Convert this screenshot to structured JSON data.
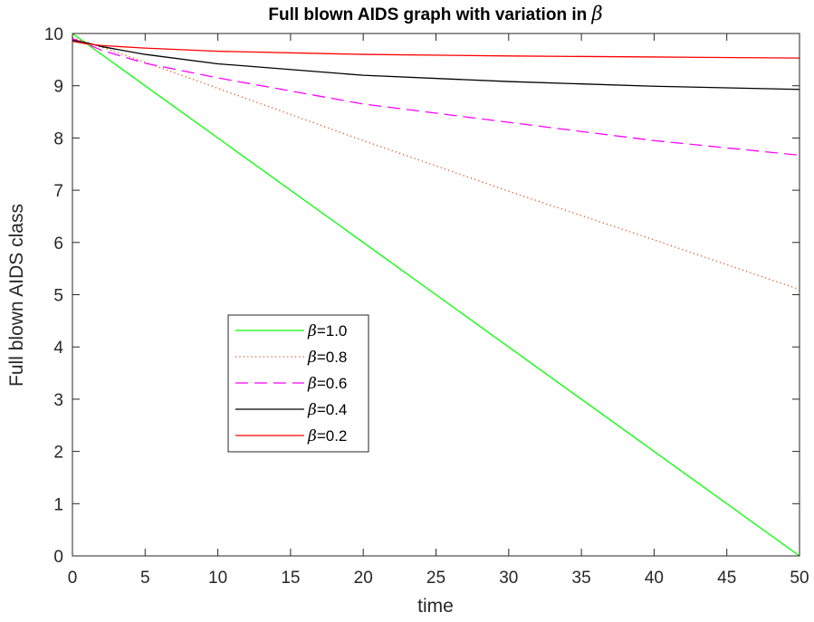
{
  "chart_data": {
    "type": "line",
    "title_text": "Full blown AIDS graph with variation in ",
    "title_symbol": "β",
    "xlabel": "time",
    "ylabel": "Full blown AIDS class",
    "xlim": [
      0,
      50
    ],
    "ylim": [
      0,
      10
    ],
    "xticks": [
      0,
      5,
      10,
      15,
      20,
      25,
      30,
      35,
      40,
      45,
      50
    ],
    "yticks": [
      0,
      1,
      2,
      3,
      4,
      5,
      6,
      7,
      8,
      9,
      10
    ],
    "grid": false,
    "legend_position": "lower-left-inside",
    "series": [
      {
        "name": "=1.0",
        "symbol": "β",
        "color": "#00ff00",
        "dash": "solid",
        "x": [
          0,
          50
        ],
        "y": [
          10.0,
          0.0
        ]
      },
      {
        "name": "=0.8",
        "symbol": "β",
        "color": "#d95319",
        "dash": "dotted",
        "x": [
          0,
          1,
          2,
          5,
          10,
          20,
          30,
          40,
          50
        ],
        "y": [
          9.92,
          9.83,
          9.74,
          9.45,
          8.95,
          7.95,
          6.98,
          6.05,
          5.1
        ]
      },
      {
        "name": "=0.6",
        "symbol": "β",
        "color": "#ff00ff",
        "dash": "dashed",
        "x": [
          0,
          1,
          2,
          5,
          10,
          20,
          30,
          40,
          50
        ],
        "y": [
          9.9,
          9.8,
          9.68,
          9.43,
          9.15,
          8.65,
          8.3,
          7.95,
          7.67
        ]
      },
      {
        "name": "=0.4",
        "symbol": "β",
        "color": "#000000",
        "dash": "solid",
        "x": [
          0,
          1,
          2,
          5,
          10,
          20,
          30,
          40,
          50
        ],
        "y": [
          9.87,
          9.82,
          9.75,
          9.6,
          9.42,
          9.2,
          9.08,
          8.99,
          8.93
        ]
      },
      {
        "name": "=0.2",
        "symbol": "β",
        "color": "#ff0000",
        "dash": "solid",
        "x": [
          0,
          1,
          2,
          5,
          10,
          20,
          30,
          40,
          50
        ],
        "y": [
          9.85,
          9.8,
          9.77,
          9.72,
          9.66,
          9.6,
          9.57,
          9.55,
          9.53
        ]
      }
    ]
  }
}
